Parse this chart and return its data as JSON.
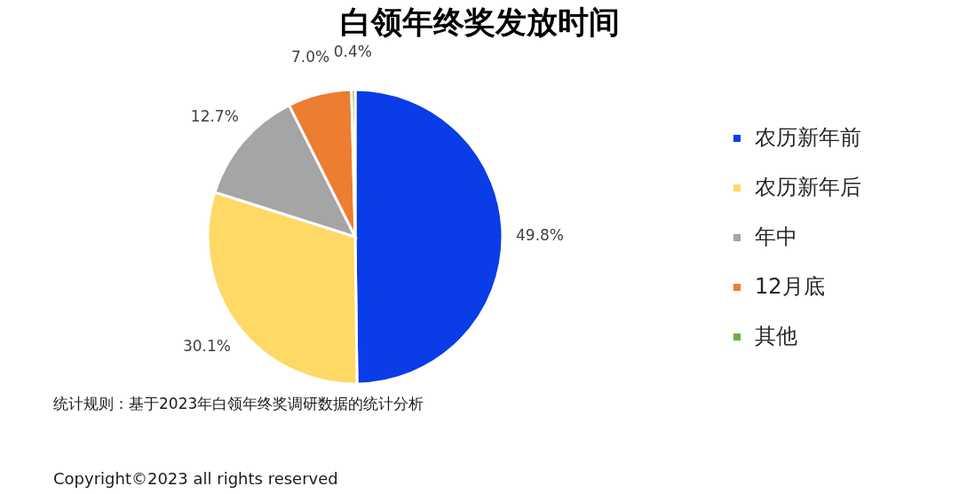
{
  "chart_data": {
    "type": "pie",
    "title": "白领年终奖发放时间",
    "categories": [
      "农历新年前",
      "农历新年后",
      "年中",
      "12月底",
      "其他"
    ],
    "values": [
      49.8,
      30.1,
      12.7,
      7.0,
      0.4
    ],
    "colors": [
      "#0a3ce8",
      "#ffd966",
      "#a5a5a5",
      "#ed7d31",
      "#70ad47"
    ],
    "value_labels": [
      "49.8%",
      "30.1%",
      "12.7%",
      "7.0%",
      "0.4%"
    ],
    "legend": "right",
    "annotations": [
      "统计规则：基于2023年白领年终奖调研数据的统计分析",
      "Copyright©2023 all rights reserved"
    ]
  }
}
